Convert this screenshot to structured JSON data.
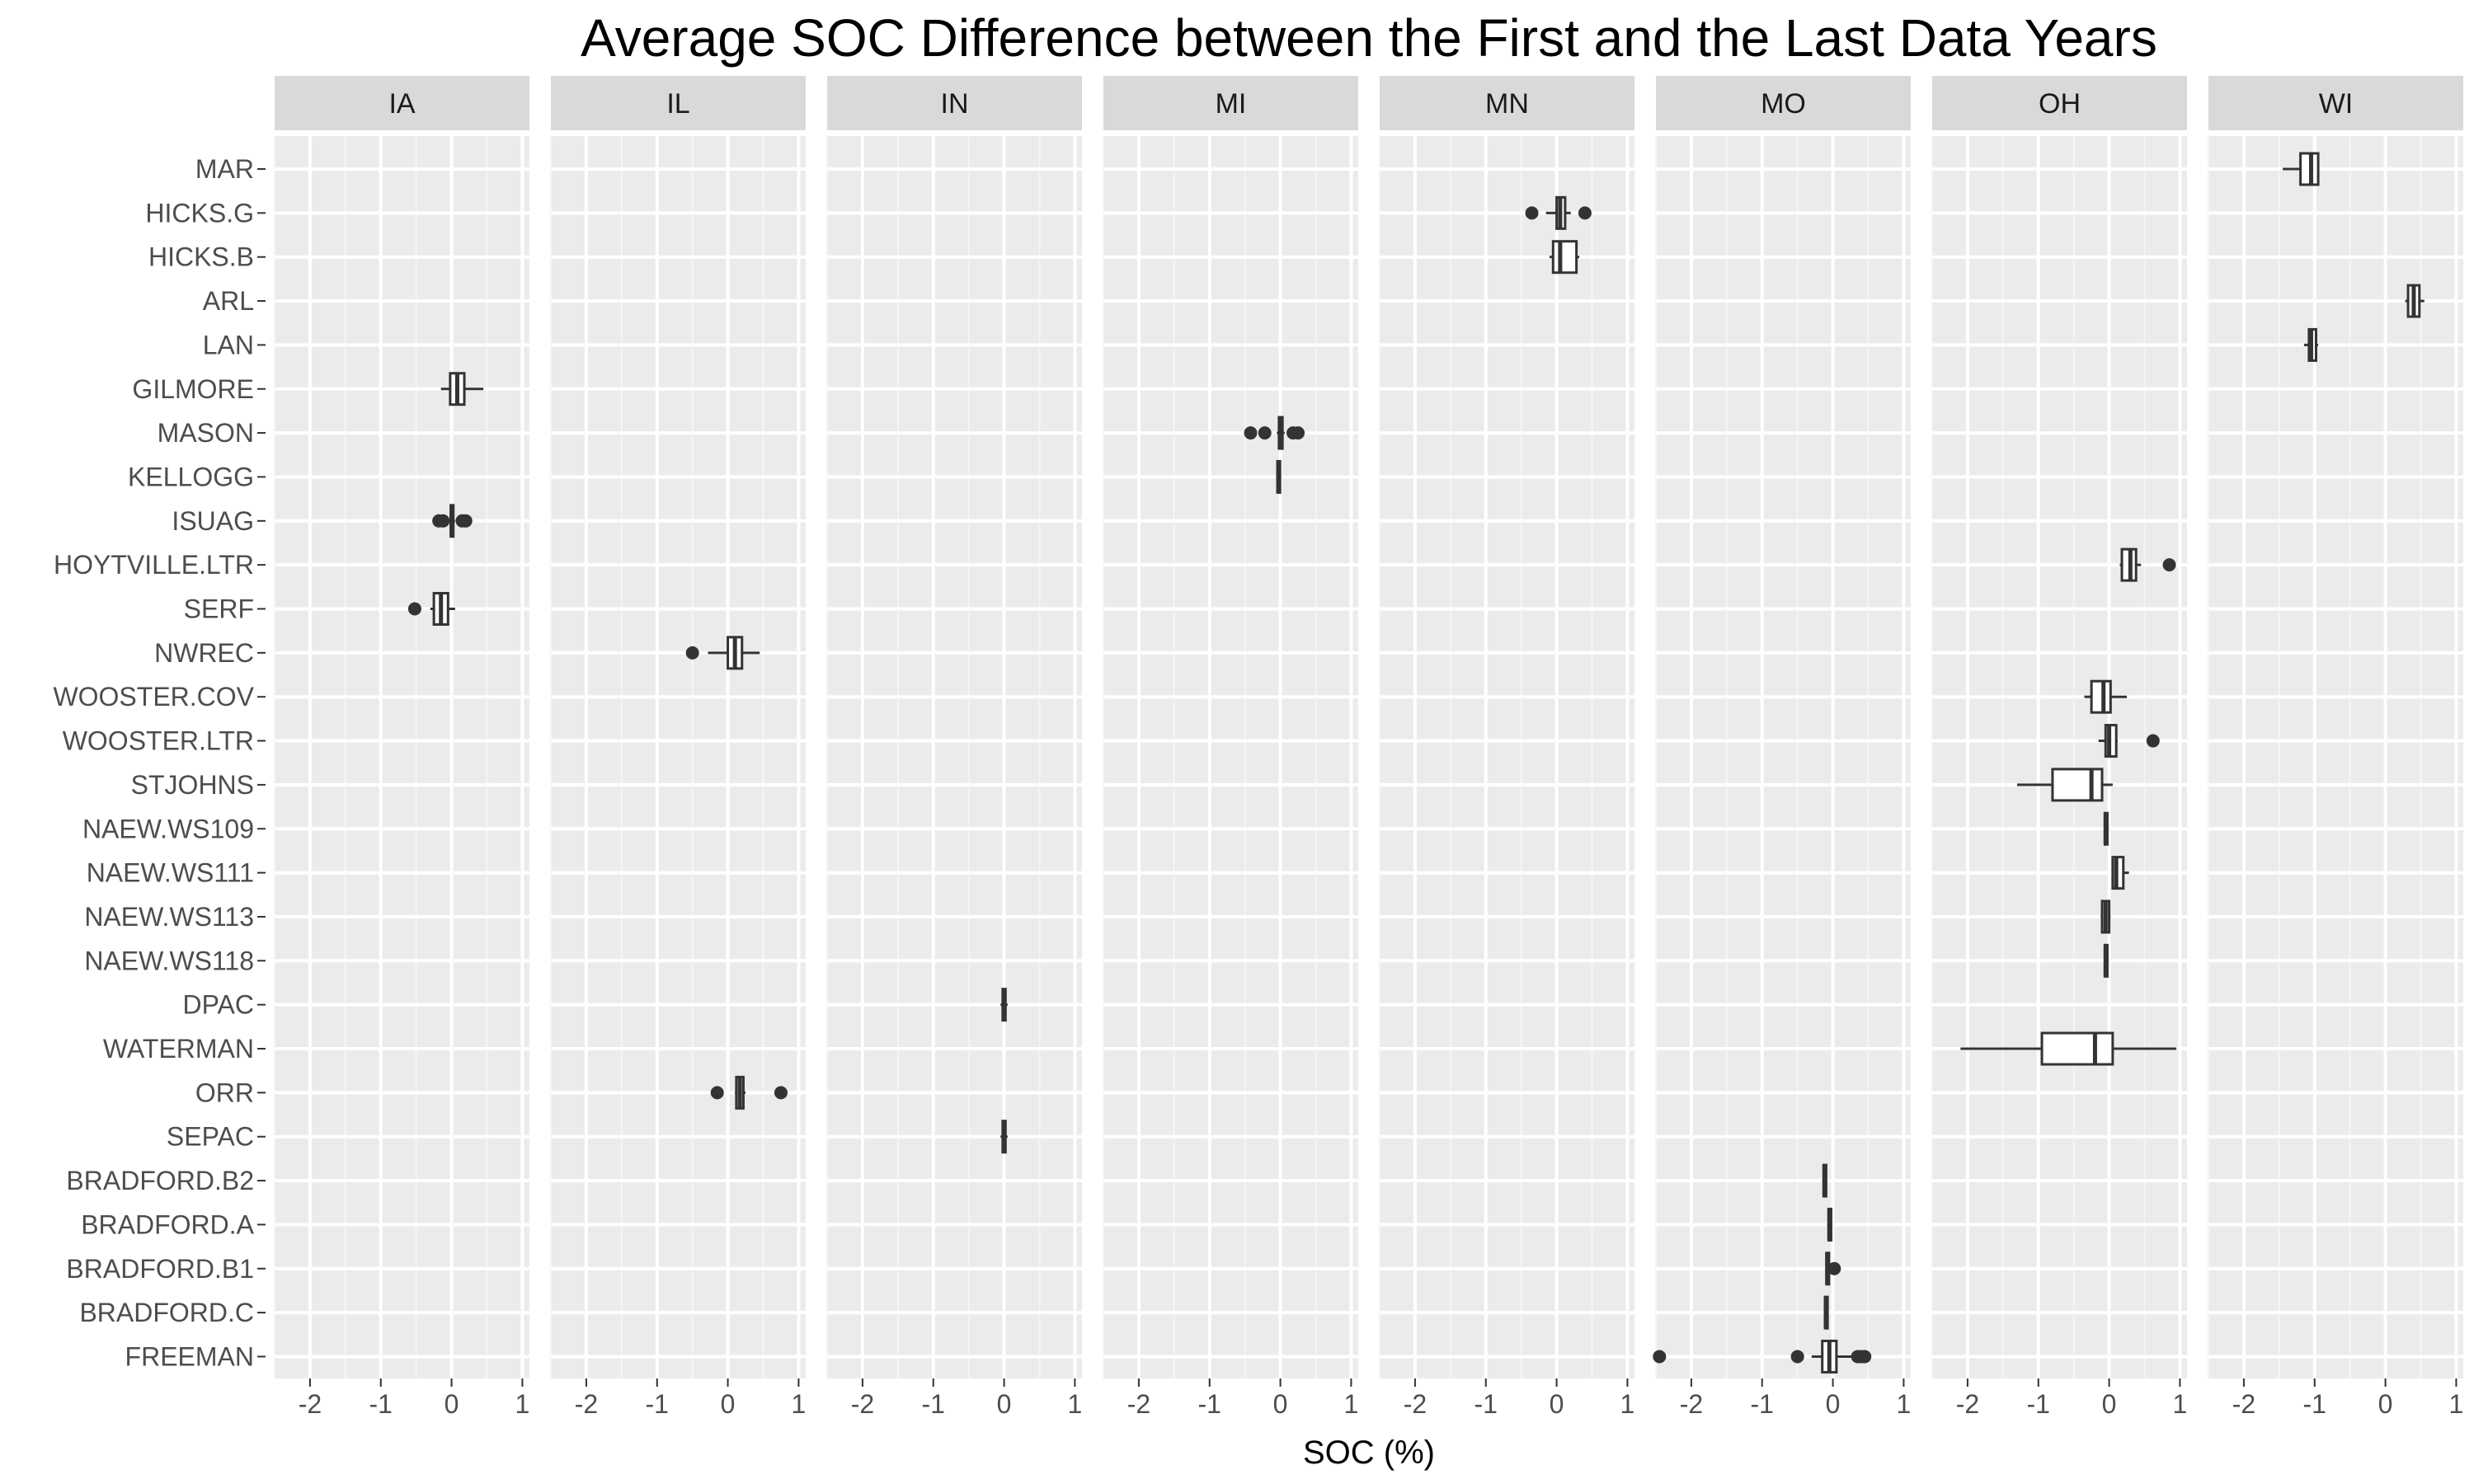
{
  "chart_data": {
    "type": "boxplot",
    "title": "Average SOC Difference between the First and the Last Data Years",
    "xlabel": "SOC (%)",
    "ylabel": "",
    "xlim": [
      -2.5,
      1.1
    ],
    "x_ticks": [
      -2,
      -1,
      0,
      1
    ],
    "x_tick_labels": [
      "-2",
      "-1",
      "0",
      "1"
    ],
    "grid": true,
    "panel_background": "#ebebeb",
    "strip_background": "#d9d9d9",
    "facets": [
      "IA",
      "IL",
      "IN",
      "MI",
      "MN",
      "MO",
      "OH",
      "WI"
    ],
    "sites": [
      "MAR",
      "HICKS.G",
      "HICKS.B",
      "ARL",
      "LAN",
      "GILMORE",
      "MASON",
      "KELLOGG",
      "ISUAG",
      "HOYTVILLE.LTR",
      "SERF",
      "NWREC",
      "WOOSTER.COV",
      "WOOSTER.LTR",
      "STJOHNS",
      "NAEW.WS109",
      "NAEW.WS111",
      "NAEW.WS113",
      "NAEW.WS118",
      "DPAC",
      "WATERMAN",
      "ORR",
      "SEPAC",
      "BRADFORD.B2",
      "BRADFORD.A",
      "BRADFORD.B1",
      "BRADFORD.C",
      "FREEMAN"
    ],
    "boxes": [
      {
        "facet": "IA",
        "site": "GILMORE",
        "min": -0.15,
        "q1": -0.02,
        "median": 0.08,
        "q3": 0.18,
        "max": 0.45,
        "outliers": []
      },
      {
        "facet": "IA",
        "site": "ISUAG",
        "min": -0.05,
        "q1": -0.01,
        "median": 0.0,
        "q3": 0.02,
        "max": 0.05,
        "outliers": [
          -0.18,
          -0.12,
          0.15,
          0.2
        ]
      },
      {
        "facet": "IA",
        "site": "SERF",
        "min": -0.3,
        "q1": -0.25,
        "median": -0.15,
        "q3": -0.05,
        "max": 0.05,
        "outliers": [
          -0.52
        ]
      },
      {
        "facet": "IL",
        "site": "NWREC",
        "min": -0.28,
        "q1": 0.0,
        "median": 0.1,
        "q3": 0.2,
        "max": 0.45,
        "outliers": [
          -0.5
        ]
      },
      {
        "facet": "IL",
        "site": "ORR",
        "min": 0.1,
        "q1": 0.12,
        "median": 0.17,
        "q3": 0.22,
        "max": 0.25,
        "outliers": [
          -0.15,
          0.75
        ]
      },
      {
        "facet": "IN",
        "site": "DPAC",
        "min": -0.05,
        "q1": -0.02,
        "median": 0.0,
        "q3": 0.02,
        "max": 0.05,
        "outliers": []
      },
      {
        "facet": "IN",
        "site": "SEPAC",
        "min": -0.05,
        "q1": -0.02,
        "median": 0.0,
        "q3": 0.02,
        "max": 0.05,
        "outliers": []
      },
      {
        "facet": "MI",
        "site": "MASON",
        "min": -0.05,
        "q1": -0.02,
        "median": 0.0,
        "q3": 0.03,
        "max": 0.06,
        "outliers": [
          -0.42,
          -0.22,
          0.18,
          0.25
        ]
      },
      {
        "facet": "MI",
        "site": "KELLOGG",
        "min": -0.06,
        "q1": -0.04,
        "median": -0.03,
        "q3": -0.01,
        "max": 0.0,
        "outliers": []
      },
      {
        "facet": "MN",
        "site": "HICKS.G",
        "min": -0.15,
        "q1": 0.0,
        "median": 0.05,
        "q3": 0.12,
        "max": 0.2,
        "outliers": [
          -0.35,
          0.4
        ]
      },
      {
        "facet": "MN",
        "site": "HICKS.B",
        "min": -0.1,
        "q1": -0.05,
        "median": 0.05,
        "q3": 0.28,
        "max": 0.32,
        "outliers": []
      },
      {
        "facet": "MO",
        "site": "BRADFORD.B2",
        "min": -0.15,
        "q1": -0.13,
        "median": -0.12,
        "q3": -0.1,
        "max": -0.08,
        "outliers": []
      },
      {
        "facet": "MO",
        "site": "BRADFORD.A",
        "min": -0.08,
        "q1": -0.06,
        "median": -0.05,
        "q3": -0.03,
        "max": -0.02,
        "outliers": []
      },
      {
        "facet": "MO",
        "site": "BRADFORD.B1",
        "min": -0.1,
        "q1": -0.09,
        "median": -0.08,
        "q3": -0.06,
        "max": -0.05,
        "outliers": [
          0.02
        ]
      },
      {
        "facet": "MO",
        "site": "BRADFORD.C",
        "min": -0.12,
        "q1": -0.11,
        "median": -0.1,
        "q3": -0.09,
        "max": -0.08,
        "outliers": []
      },
      {
        "facet": "MO",
        "site": "FREEMAN",
        "min": -0.3,
        "q1": -0.15,
        "median": -0.05,
        "q3": 0.05,
        "max": 0.3,
        "outliers": [
          -2.45,
          -0.5,
          0.35,
          0.4,
          0.45
        ]
      },
      {
        "facet": "OH",
        "site": "HOYTVILLE.LTR",
        "min": 0.15,
        "q1": 0.18,
        "median": 0.3,
        "q3": 0.38,
        "max": 0.45,
        "outliers": [
          0.85
        ]
      },
      {
        "facet": "OH",
        "site": "WOOSTER.COV",
        "min": -0.35,
        "q1": -0.25,
        "median": -0.08,
        "q3": 0.02,
        "max": 0.25,
        "outliers": []
      },
      {
        "facet": "OH",
        "site": "WOOSTER.LTR",
        "min": -0.15,
        "q1": -0.05,
        "median": 0.0,
        "q3": 0.1,
        "max": 0.12,
        "outliers": [
          0.62
        ]
      },
      {
        "facet": "OH",
        "site": "STJOHNS",
        "min": -1.3,
        "q1": -0.8,
        "median": -0.25,
        "q3": -0.1,
        "max": 0.05,
        "outliers": []
      },
      {
        "facet": "OH",
        "site": "NAEW.WS109",
        "min": -0.07,
        "q1": -0.06,
        "median": -0.05,
        "q3": -0.04,
        "max": -0.03,
        "outliers": []
      },
      {
        "facet": "OH",
        "site": "NAEW.WS111",
        "min": 0.05,
        "q1": 0.05,
        "median": 0.1,
        "q3": 0.2,
        "max": 0.28,
        "outliers": []
      },
      {
        "facet": "OH",
        "site": "NAEW.WS113",
        "min": -0.12,
        "q1": -0.1,
        "median": -0.05,
        "q3": 0.0,
        "max": 0.02,
        "outliers": []
      },
      {
        "facet": "OH",
        "site": "NAEW.WS118",
        "min": -0.07,
        "q1": -0.06,
        "median": -0.05,
        "q3": -0.04,
        "max": -0.03,
        "outliers": []
      },
      {
        "facet": "OH",
        "site": "WATERMAN",
        "min": -2.1,
        "q1": -0.95,
        "median": -0.2,
        "q3": 0.05,
        "max": 0.95,
        "outliers": []
      },
      {
        "facet": "WI",
        "site": "MAR",
        "min": -1.45,
        "q1": -1.2,
        "median": -1.05,
        "q3": -0.95,
        "max": -0.95,
        "outliers": []
      },
      {
        "facet": "WI",
        "site": "ARL",
        "min": 0.28,
        "q1": 0.32,
        "median": 0.4,
        "q3": 0.48,
        "max": 0.55,
        "outliers": []
      },
      {
        "facet": "WI",
        "site": "LAN",
        "min": -1.15,
        "q1": -1.08,
        "median": -1.05,
        "q3": -0.98,
        "max": -0.95,
        "outliers": []
      }
    ]
  }
}
